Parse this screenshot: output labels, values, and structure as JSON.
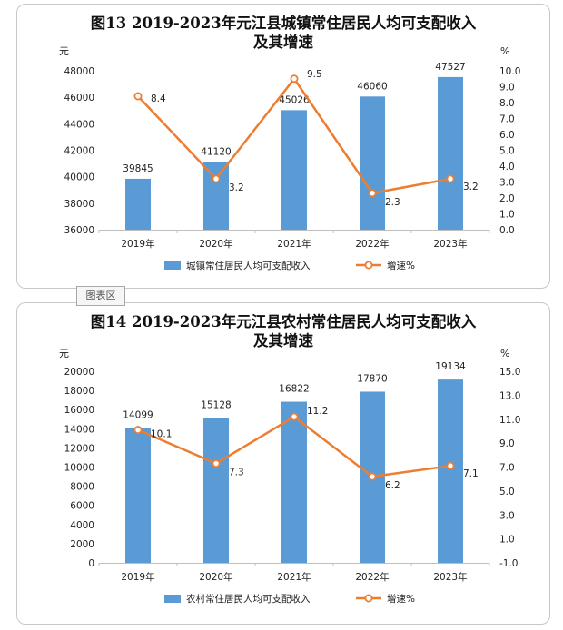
{
  "colors": {
    "bar": "#5b9bd5",
    "line": "#ed7d31"
  },
  "chart_data": [
    {
      "type": "bar",
      "title_line1": "图13    2019-2023年元江县城镇常住居民人均可支配收入",
      "title_line2": "及其增速",
      "left_unit": "元",
      "right_unit": "%",
      "categories": [
        "2019年",
        "2020年",
        "2021年",
        "2022年",
        "2023年"
      ],
      "bar_series": {
        "name": "城镇常住居民人均可支配收入",
        "values": [
          39845,
          41120,
          45026,
          46060,
          47527
        ]
      },
      "line_series": {
        "name": "增速%",
        "values": [
          8.4,
          3.2,
          9.5,
          2.3,
          3.2
        ]
      },
      "bar_labels": [
        "39845",
        "41120",
        "45026",
        "46060",
        "47527"
      ],
      "line_labels": [
        "8.4",
        "3.2",
        "9.5",
        "2.3",
        "3.2"
      ],
      "ylim": [
        36000,
        48000
      ],
      "y_ticks": [
        "36000",
        "38000",
        "40000",
        "42000",
        "44000",
        "46000",
        "48000"
      ],
      "y2lim": [
        0,
        10
      ],
      "y2_ticks": [
        "0.0",
        "1.0",
        "2.0",
        "3.0",
        "4.0",
        "5.0",
        "6.0",
        "7.0",
        "8.0",
        "9.0",
        "10.0"
      ],
      "grid": false,
      "legend_position": "bottom"
    },
    {
      "type": "bar",
      "title_line1": "图14    2019-2023年元江县农村常住居民人均可支配收入",
      "title_line2": "及其增速",
      "left_unit": "元",
      "right_unit": "%",
      "categories": [
        "2019年",
        "2020年",
        "2021年",
        "2022年",
        "2023年"
      ],
      "bar_series": {
        "name": "农村常住居民人均可支配收入",
        "values": [
          14099,
          15128,
          16822,
          17870,
          19134
        ]
      },
      "line_series": {
        "name": "增速%",
        "values": [
          10.1,
          7.3,
          11.2,
          6.2,
          7.1
        ]
      },
      "bar_labels": [
        "14099",
        "15128",
        "16822",
        "17870",
        "19134"
      ],
      "line_labels": [
        "10.1",
        "7.3",
        "11.2",
        "6.2",
        "7.1"
      ],
      "ylim": [
        0,
        20000
      ],
      "y_ticks": [
        "0",
        "2000",
        "4000",
        "6000",
        "8000",
        "10000",
        "12000",
        "14000",
        "16000",
        "18000",
        "20000"
      ],
      "y2lim": [
        -1,
        15
      ],
      "y2_ticks": [
        "-1.0",
        "1.0",
        "3.0",
        "5.0",
        "7.0",
        "9.0",
        "11.0",
        "13.0",
        "15.0"
      ],
      "grid": false,
      "legend_position": "bottom"
    }
  ],
  "watermark_label": "图表区"
}
